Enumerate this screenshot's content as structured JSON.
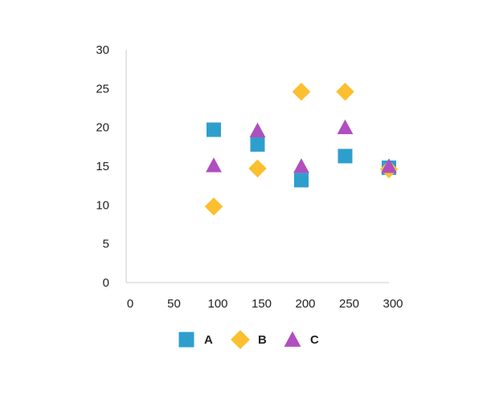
{
  "chart_data": {
    "type": "scatter",
    "title": "",
    "xlabel": "",
    "ylabel": "",
    "xlim": [
      0,
      300
    ],
    "ylim": [
      0,
      30
    ],
    "x_ticks": [
      0,
      50,
      100,
      150,
      200,
      250,
      300
    ],
    "y_ticks": [
      0,
      5,
      10,
      15,
      20,
      25,
      30
    ],
    "grid": false,
    "legend_position": "bottom",
    "series": [
      {
        "name": "A",
        "marker": "square",
        "color": "#2e9fcd",
        "points": [
          [
            100,
            19.7
          ],
          [
            150,
            17.8
          ],
          [
            200,
            13.2
          ],
          [
            250,
            16.3
          ],
          [
            300,
            14.8
          ]
        ]
      },
      {
        "name": "B",
        "marker": "diamond",
        "color": "#fbbf2f",
        "points": [
          [
            100,
            9.8
          ],
          [
            150,
            14.7
          ],
          [
            200,
            24.6
          ],
          [
            250,
            24.6
          ],
          [
            300,
            14.6
          ]
        ]
      },
      {
        "name": "C",
        "marker": "triangle",
        "color": "#b04fbf",
        "points": [
          [
            100,
            15.1
          ],
          [
            150,
            19.6
          ],
          [
            200,
            15.0
          ],
          [
            250,
            20.0
          ],
          [
            300,
            15.0
          ]
        ]
      }
    ]
  }
}
